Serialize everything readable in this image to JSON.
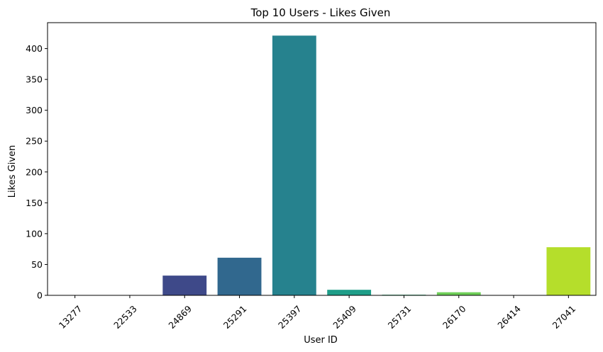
{
  "chart_data": {
    "type": "bar",
    "title": "Top 10 Users - Likes Given",
    "xlabel": "User ID",
    "ylabel": "Likes Given",
    "categories": [
      "13277",
      "22533",
      "24869",
      "25291",
      "25397",
      "25409",
      "25731",
      "26170",
      "26414",
      "27041"
    ],
    "values": [
      0,
      0,
      32,
      61,
      421,
      9,
      1,
      5,
      0,
      78
    ],
    "colors": [
      "#440154",
      "#482878",
      "#3e4989",
      "#31688e",
      "#26828e",
      "#1f9e89",
      "#35b779",
      "#6ece58",
      "#b5de2b",
      "#b5de2b"
    ],
    "ylim": [
      0,
      442
    ],
    "yticks": [
      0,
      50,
      100,
      150,
      200,
      250,
      300,
      350,
      400
    ],
    "ytick_labels": [
      "0",
      "50",
      "100",
      "150",
      "200",
      "250",
      "300",
      "350",
      "400"
    ],
    "xtick_rotation": 45,
    "grid": false,
    "legend": "none"
  }
}
